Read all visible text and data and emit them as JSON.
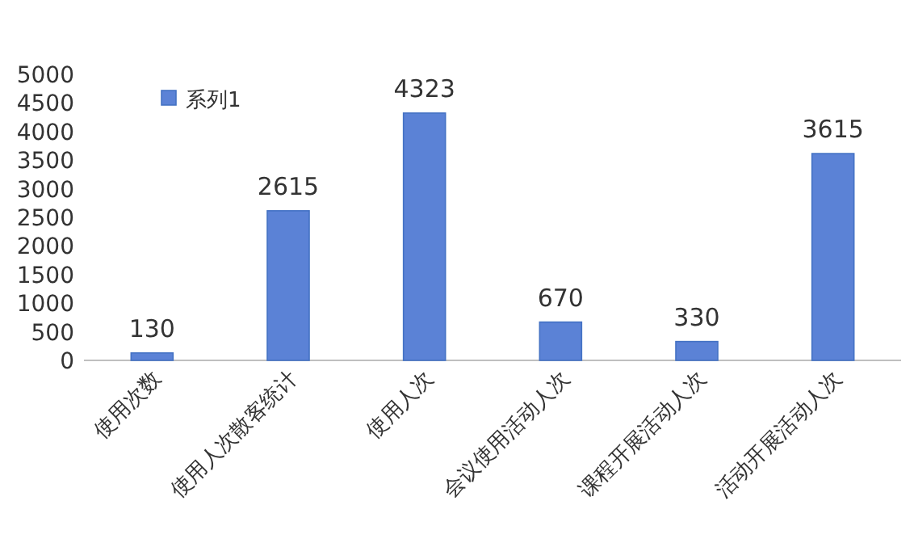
{
  "chart_data": {
    "type": "bar",
    "categories": [
      "使用次数",
      "使用人次散客统计",
      "使用人次",
      "会议使用活动人次",
      "课程开展活动人次",
      "活动开展活动人次"
    ],
    "series": [
      {
        "name": "系列1",
        "color": "#5b82d6",
        "values": [
          130,
          2615,
          4323,
          670,
          330,
          3615
        ]
      }
    ],
    "ylim": [
      0,
      5000
    ],
    "yticks": [
      0,
      500,
      1000,
      1500,
      2000,
      2500,
      3000,
      3500,
      4000,
      4500,
      5000
    ],
    "data_labels": true,
    "legend": "top left",
    "grid": false
  }
}
